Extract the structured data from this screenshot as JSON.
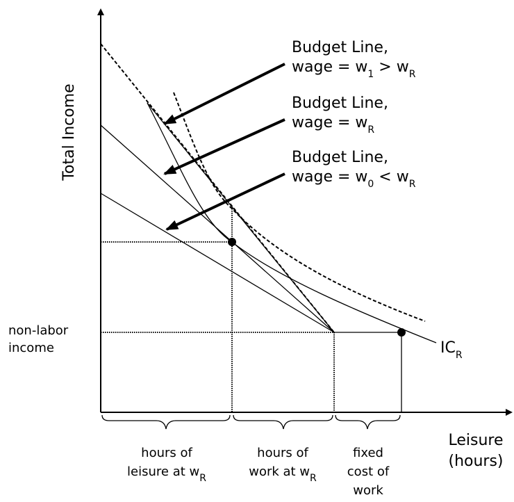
{
  "axes": {
    "y_label": "Total Income",
    "x_label": [
      "Leisure",
      "(hours)"
    ]
  },
  "non_labor_income": [
    "non-labor",
    "income"
  ],
  "budget_lines": [
    {
      "title": "Budget Line,",
      "wage": [
        "wage = w",
        "1",
        " > w",
        "R"
      ]
    },
    {
      "title": "Budget Line,",
      "wage": [
        "wage = w",
        "R"
      ]
    },
    {
      "title": "Budget Line,",
      "wage": [
        "wage = w",
        "0",
        " < w",
        "R"
      ]
    }
  ],
  "ic_label": [
    "IC",
    "R"
  ],
  "brackets": [
    {
      "lines": [
        "hours of",
        "leisure at w"
      ],
      "sub": "R"
    },
    {
      "lines": [
        "hours of",
        "work at w"
      ],
      "sub": "R"
    },
    {
      "lines": [
        "fixed",
        "cost of",
        "work"
      ]
    }
  ]
}
